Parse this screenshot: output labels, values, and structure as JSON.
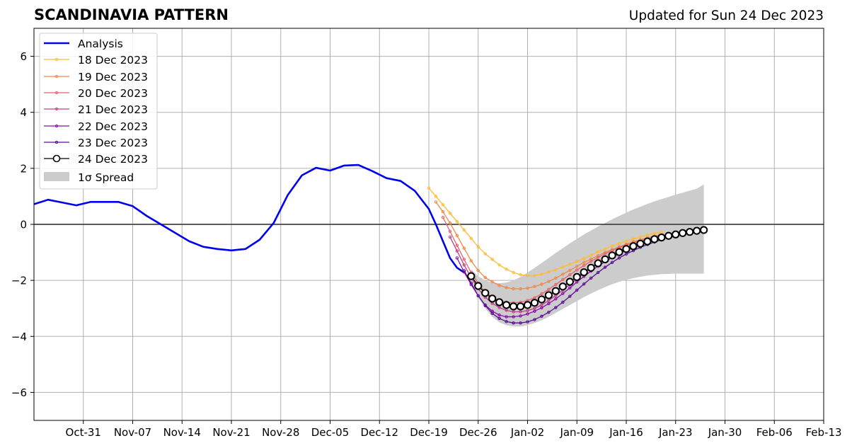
{
  "chart_data": {
    "type": "line",
    "title": "SCANDINAVIA PATTERN",
    "subtitle": "Updated for Sun 24 Dec 2023",
    "xlabel": "",
    "ylabel": "",
    "ylim": [
      -7,
      7
    ],
    "y_ticks": [
      -6,
      -4,
      -2,
      0,
      2,
      4,
      6
    ],
    "y_tick_labels": [
      "−6",
      "−4",
      "−2",
      "0",
      "2",
      "4",
      "6"
    ],
    "x_start": "2023-10-24",
    "x_end": "2024-02-13",
    "x_ticks": [
      {
        "date": "2023-10-31",
        "label": "Oct-31"
      },
      {
        "date": "2023-11-07",
        "label": "Nov-07"
      },
      {
        "date": "2023-11-14",
        "label": "Nov-14"
      },
      {
        "date": "2023-11-21",
        "label": "Nov-21"
      },
      {
        "date": "2023-11-28",
        "label": "Nov-28"
      },
      {
        "date": "2023-12-05",
        "label": "Dec-05"
      },
      {
        "date": "2023-12-12",
        "label": "Dec-12"
      },
      {
        "date": "2023-12-19",
        "label": "Dec-19"
      },
      {
        "date": "2023-12-26",
        "label": "Dec-26"
      },
      {
        "date": "2024-01-02",
        "label": "Jan-02"
      },
      {
        "date": "2024-01-09",
        "label": "Jan-09"
      },
      {
        "date": "2024-01-16",
        "label": "Jan-16"
      },
      {
        "date": "2024-01-23",
        "label": "Jan-23"
      },
      {
        "date": "2024-01-30",
        "label": "Jan-30"
      },
      {
        "date": "2024-02-06",
        "label": "Feb-06"
      },
      {
        "date": "2024-02-13",
        "label": "Feb-13"
      }
    ],
    "grid": true,
    "zero_line": true,
    "legend_position": "top-left",
    "analysis": {
      "name": "Analysis",
      "color": "#0000ee",
      "x": [
        "2023-10-24",
        "2023-10-26",
        "2023-10-28",
        "2023-10-30",
        "2023-11-01",
        "2023-11-03",
        "2023-11-05",
        "2023-11-07",
        "2023-11-09",
        "2023-11-11",
        "2023-11-13",
        "2023-11-15",
        "2023-11-17",
        "2023-11-19",
        "2023-11-21",
        "2023-11-23",
        "2023-11-25",
        "2023-11-27",
        "2023-11-29",
        "2023-12-01",
        "2023-12-03",
        "2023-12-05",
        "2023-12-07",
        "2023-12-09",
        "2023-12-11",
        "2023-12-13",
        "2023-12-15",
        "2023-12-17",
        "2023-12-19",
        "2023-12-20",
        "2023-12-21",
        "2023-12-22",
        "2023-12-23",
        "2023-12-24"
      ],
      "y": [
        0.72,
        0.88,
        0.78,
        0.68,
        0.8,
        0.8,
        0.8,
        0.65,
        0.3,
        0.0,
        -0.3,
        -0.6,
        -0.8,
        -0.88,
        -0.93,
        -0.88,
        -0.55,
        0.05,
        1.05,
        1.75,
        2.02,
        1.92,
        2.1,
        2.12,
        1.9,
        1.65,
        1.55,
        1.2,
        0.55,
        0.0,
        -0.6,
        -1.2,
        -1.55,
        -1.72
      ]
    },
    "forecasts": [
      {
        "name": "18 Dec 2023",
        "color": "#ffbb33",
        "start": "2023-12-19",
        "x_step_days": 1,
        "y": [
          1.3,
          1.0,
          0.7,
          0.4,
          0.1,
          -0.2,
          -0.5,
          -0.8,
          -1.05,
          -1.25,
          -1.45,
          -1.6,
          -1.72,
          -1.8,
          -1.83,
          -1.83,
          -1.78,
          -1.7,
          -1.62,
          -1.52,
          -1.42,
          -1.32,
          -1.22,
          -1.1,
          -0.98,
          -0.88,
          -0.78,
          -0.68,
          -0.6,
          -0.52,
          -0.45,
          -0.38,
          -0.32,
          -0.28
        ]
      },
      {
        "name": "19 Dec 2023",
        "color": "#f08848",
        "start": "2023-12-20",
        "x_step_days": 1,
        "y": [
          0.8,
          0.45,
          0.05,
          -0.4,
          -0.85,
          -1.3,
          -1.65,
          -1.9,
          -2.05,
          -2.18,
          -2.26,
          -2.3,
          -2.3,
          -2.28,
          -2.22,
          -2.14,
          -2.04,
          -1.92,
          -1.78,
          -1.64,
          -1.5,
          -1.36,
          -1.24,
          -1.12,
          -1.0,
          -0.9,
          -0.8,
          -0.71,
          -0.62,
          -0.55,
          -0.48,
          -0.42,
          -0.37
        ]
      },
      {
        "name": "20 Dec 2023",
        "color": "#e8636a",
        "start": "2023-12-21",
        "x_step_days": 1,
        "y": [
          0.25,
          -0.25,
          -0.75,
          -1.25,
          -1.72,
          -2.1,
          -2.42,
          -2.6,
          -2.72,
          -2.78,
          -2.8,
          -2.78,
          -2.72,
          -2.62,
          -2.48,
          -2.32,
          -2.15,
          -1.97,
          -1.8,
          -1.63,
          -1.47,
          -1.32,
          -1.18,
          -1.05,
          -0.93,
          -0.83,
          -0.74,
          -0.66,
          -0.58,
          -0.52,
          -0.46,
          -0.4
        ]
      },
      {
        "name": "21 Dec 2023",
        "color": "#c13c8c",
        "start": "2023-12-22",
        "x_step_days": 1,
        "y": [
          -0.45,
          -0.95,
          -1.45,
          -1.9,
          -2.3,
          -2.6,
          -2.82,
          -2.97,
          -3.07,
          -3.12,
          -3.12,
          -3.08,
          -3.0,
          -2.88,
          -2.72,
          -2.54,
          -2.35,
          -2.15,
          -1.95,
          -1.75,
          -1.57,
          -1.4,
          -1.24,
          -1.1,
          -0.97,
          -0.86,
          -0.76,
          -0.67,
          -0.59,
          -0.52,
          -0.45
        ]
      },
      {
        "name": "22 Dec 2023",
        "color": "#8a0fa8",
        "start": "2023-12-23",
        "x_step_days": 1,
        "y": [
          -1.2,
          -1.7,
          -2.15,
          -2.55,
          -2.88,
          -3.1,
          -3.24,
          -3.3,
          -3.3,
          -3.27,
          -3.2,
          -3.1,
          -2.98,
          -2.83,
          -2.66,
          -2.47,
          -2.27,
          -2.06,
          -1.86,
          -1.67,
          -1.49,
          -1.33,
          -1.18,
          -1.04,
          -0.92,
          -0.82,
          -0.72,
          -0.63,
          -0.55,
          -0.48
        ]
      },
      {
        "name": "23 Dec 2023",
        "color": "#5a0d96",
        "start": "2023-12-24",
        "x_step_days": 1,
        "y": [
          -1.65,
          -2.1,
          -2.55,
          -2.9,
          -3.18,
          -3.36,
          -3.47,
          -3.52,
          -3.52,
          -3.48,
          -3.4,
          -3.28,
          -3.14,
          -2.97,
          -2.78,
          -2.57,
          -2.35,
          -2.13,
          -1.92,
          -1.72,
          -1.53,
          -1.36,
          -1.2,
          -1.06,
          -0.94,
          -0.82,
          -0.72,
          -0.63,
          -0.55
        ]
      }
    ],
    "current_forecast": {
      "name": "24 Dec 2023",
      "color": "#000000",
      "marker_fill": "#ffffff",
      "start": "2023-12-25",
      "x_step_days": 1,
      "y": [
        -1.85,
        -2.2,
        -2.45,
        -2.65,
        -2.78,
        -2.88,
        -2.93,
        -2.93,
        -2.88,
        -2.8,
        -2.68,
        -2.53,
        -2.38,
        -2.22,
        -2.05,
        -1.88,
        -1.71,
        -1.55,
        -1.39,
        -1.25,
        -1.11,
        -0.99,
        -0.88,
        -0.78,
        -0.69,
        -0.61,
        -0.53,
        -0.47,
        -0.41,
        -0.36,
        -0.31,
        -0.27,
        -0.23,
        -0.2
      ]
    },
    "spread": {
      "name": "1σ Spread",
      "color": "#cccccc",
      "x": [
        "2023-12-25",
        "2023-12-26",
        "2023-12-27",
        "2023-12-28",
        "2023-12-29",
        "2023-12-30",
        "2023-12-31",
        "2024-01-01",
        "2024-01-02",
        "2024-01-03",
        "2024-01-04",
        "2024-01-05",
        "2024-01-06",
        "2024-01-07",
        "2024-01-08",
        "2024-01-09",
        "2024-01-10",
        "2024-01-11",
        "2024-01-12",
        "2024-01-13",
        "2024-01-14",
        "2024-01-15",
        "2024-01-16",
        "2024-01-17",
        "2024-01-18",
        "2024-01-19",
        "2024-01-20",
        "2024-01-21",
        "2024-01-22",
        "2024-01-23",
        "2024-01-24",
        "2024-01-25",
        "2024-01-26",
        "2024-01-27"
      ],
      "upper": [
        -1.6,
        -1.85,
        -2.0,
        -2.08,
        -2.1,
        -2.08,
        -2.0,
        -1.88,
        -1.72,
        -1.55,
        -1.38,
        -1.2,
        -1.02,
        -0.85,
        -0.68,
        -0.52,
        -0.36,
        -0.22,
        -0.08,
        0.05,
        0.18,
        0.3,
        0.42,
        0.53,
        0.63,
        0.73,
        0.82,
        0.9,
        0.98,
        1.06,
        1.13,
        1.2,
        1.27,
        1.43
      ],
      "lower": [
        -2.05,
        -2.6,
        -3.0,
        -3.3,
        -3.5,
        -3.6,
        -3.65,
        -3.65,
        -3.6,
        -3.52,
        -3.42,
        -3.3,
        -3.16,
        -3.02,
        -2.88,
        -2.74,
        -2.6,
        -2.47,
        -2.35,
        -2.24,
        -2.14,
        -2.05,
        -1.98,
        -1.92,
        -1.87,
        -1.83,
        -1.8,
        -1.78,
        -1.77,
        -1.76,
        -1.76,
        -1.76,
        -1.76,
        -1.76
      ]
    }
  },
  "legend": {
    "analysis": "Analysis",
    "f18": "18 Dec 2023",
    "f19": "19 Dec 2023",
    "f20": "20 Dec 2023",
    "f21": "21 Dec 2023",
    "f22": "22 Dec 2023",
    "f23": "23 Dec 2023",
    "f24": "24 Dec 2023",
    "spread": "1σ Spread"
  }
}
